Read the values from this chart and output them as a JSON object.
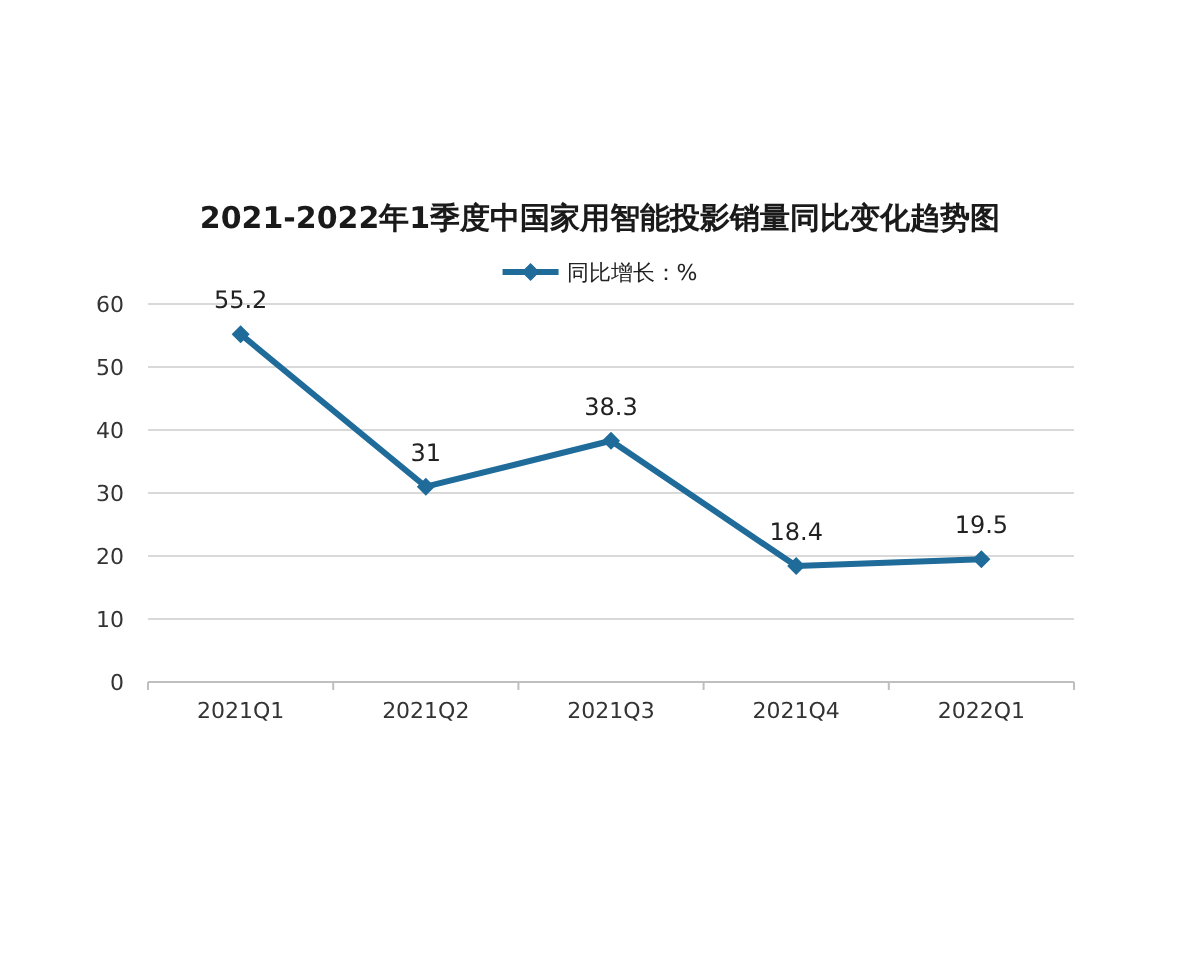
{
  "chart_data": {
    "type": "line",
    "title": "2021-2022年1季度中国家用智能投影销量同比变化趋势图",
    "categories": [
      "2021Q1",
      "2021Q2",
      "2021Q3",
      "2021Q4",
      "2022Q1"
    ],
    "series": [
      {
        "name": "同比增长：%",
        "color": "#1f6b99",
        "values": [
          55.2,
          31,
          38.3,
          18.4,
          19.5
        ]
      }
    ],
    "ylim": [
      0,
      60
    ],
    "yticks": [
      0,
      10,
      20,
      30,
      40,
      50,
      60
    ],
    "grid": "y",
    "legend": "top",
    "marker": "diamond",
    "line_style": "solid",
    "data_labels": true
  }
}
